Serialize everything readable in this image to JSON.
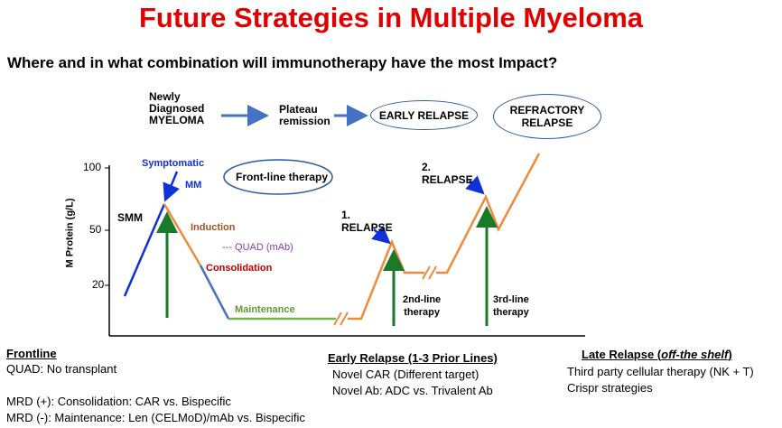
{
  "title": "Future Strategies in Multiple Myeloma",
  "subtitle": "Where and in what combination will immunotherapy have the most Impact?",
  "flow": {
    "step1": [
      "Newly",
      "Diagnosed",
      "MYELOMA"
    ],
    "step2": [
      "Plateau",
      "remission"
    ],
    "step3": "EARLY RELAPSE",
    "step4": [
      "REFRACTORY",
      "RELAPSE"
    ]
  },
  "chart": {
    "ylabel": "M Protein (g/L)",
    "yticks": [
      "100",
      "50",
      "20"
    ],
    "frontline_box": "Front-line therapy",
    "symptomatic": "Symptomatic",
    "mm": "MM",
    "smm": "SMM",
    "induction": "Induction",
    "quad": "--- QUAD (mAb)",
    "consolidation": "Consolidation",
    "maintenance": "Maintenance",
    "relapse1": [
      "1.",
      "RELAPSE"
    ],
    "relapse2": [
      "2.",
      "RELAPSE"
    ],
    "second_line": [
      "2nd-line",
      "therapy"
    ],
    "third_line": [
      "3rd-line",
      "therapy"
    ]
  },
  "colors": {
    "title": "#e00000",
    "blue": "#1030d8",
    "orange": "#f08a3c",
    "green": "#1a7a2a",
    "maintenance": "#78b04a",
    "induction_text": "#a0521e",
    "quad_text": "#8c3aa8",
    "consolidation_text": "#c00000"
  },
  "bottom": {
    "frontline": {
      "heading": "Frontline",
      "line1": "QUAD: No transplant",
      "line2": "MRD (+): Consolidation: CAR  vs.  Bispecific",
      "line3": "MRD (-): Maintenance: Len (CELMoD)/mAb  vs.  Bispecific"
    },
    "early": {
      "heading": "Early Relapse (1-3 Prior Lines)",
      "line1": "Novel CAR (Different target)",
      "line2": "Novel Ab: ADC vs. Trivalent Ab"
    },
    "late": {
      "heading_main": "Late Relapse (",
      "heading_italic": "off-the shelf",
      "heading_end": ")",
      "line1": "Third party cellular therapy (NK + T)",
      "line2": "Crispr strategies"
    }
  }
}
